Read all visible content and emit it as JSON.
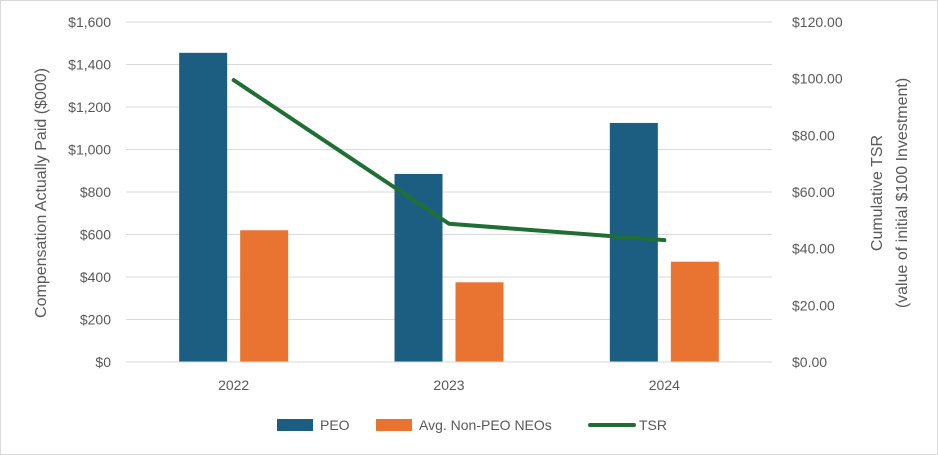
{
  "chart_data": {
    "type": "bar",
    "categories": [
      "2022",
      "2023",
      "2024"
    ],
    "series": [
      {
        "name": "PEO",
        "kind": "bar",
        "axis": "left",
        "color": "#1b5e82",
        "values": [
          1455,
          885,
          1125
        ]
      },
      {
        "name": "Avg. Non-PEO NEOs",
        "kind": "bar",
        "axis": "left",
        "color": "#e97331",
        "values": [
          620,
          375,
          472
        ]
      },
      {
        "name": "TSR",
        "kind": "line",
        "axis": "right",
        "color": "#1f6f34",
        "values": [
          99.5,
          48.8,
          43.0
        ]
      }
    ],
    "ylabel": "Compensation Actually Paid ($000)",
    "ylim": [
      0,
      1600
    ],
    "yticks": [
      "$0",
      "$200",
      "$400",
      "$600",
      "$800",
      "$1,000",
      "$1,200",
      "$1,400",
      "$1,600"
    ],
    "y2label_line1": "Cumulative TSR",
    "y2label_line2": "(value of initial $100 Investment)",
    "y2lim": [
      0,
      120
    ],
    "y2ticks": [
      "$0.00",
      "$20.00",
      "$40.00",
      "$60.00",
      "$80.00",
      "$100.00",
      "$120.00"
    ],
    "grid": true,
    "legend_position": "bottom"
  }
}
